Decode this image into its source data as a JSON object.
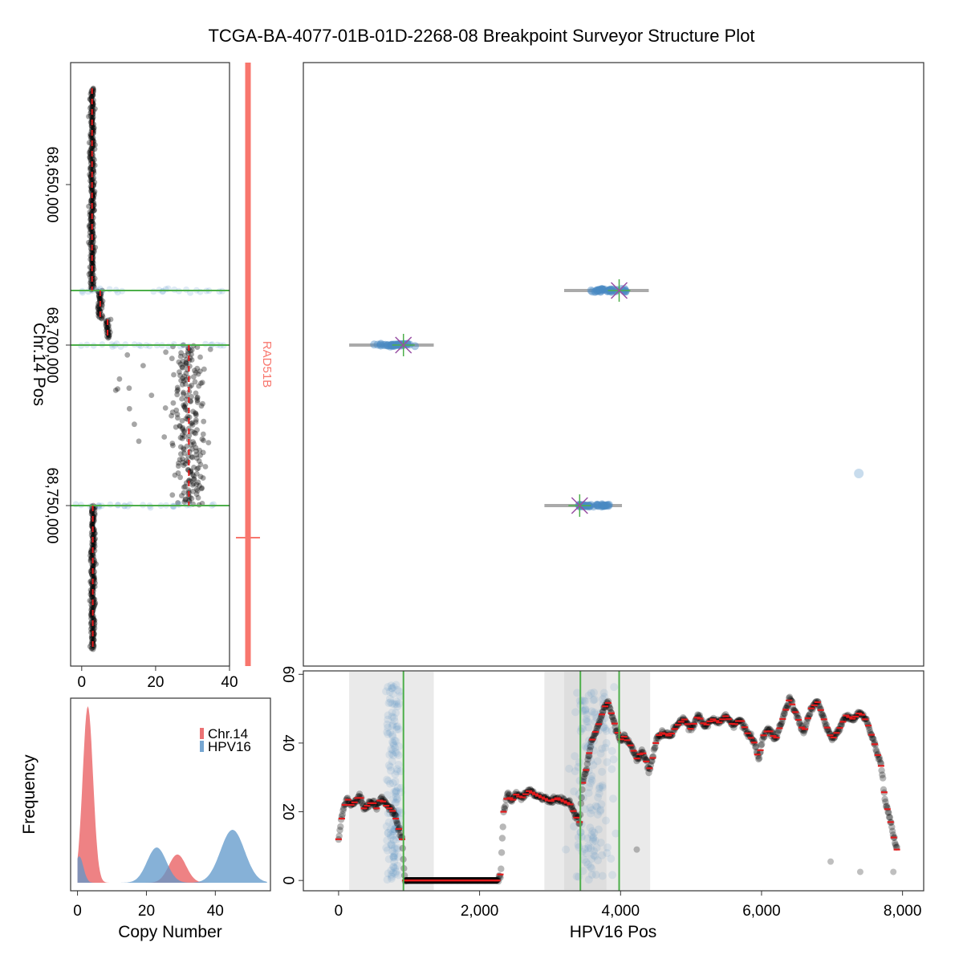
{
  "title": "TCGA-BA-4077-01B-01D-2268-08 Breakpoint Surveyor Structure Plot",
  "colors": {
    "chr_copy_points": "#000000",
    "segment_mean": "#e41a1c",
    "breakpoint_line": "#4daf4a",
    "read_points": "#4a8ac4",
    "range_bar": "#aaaaaa",
    "breakpoint_marker": "#984ea3",
    "gene": "#f8766d",
    "region_shade": "#d8d8d8",
    "chr_density": "#e8585b",
    "hpv_density": "#5e97c9"
  },
  "chart_data": [
    {
      "id": "chr-copy-number",
      "type": "scatter",
      "xlabel": "",
      "ylabel": "Chr.14 Pos",
      "xlim": [
        -3,
        40
      ],
      "ylim": [
        68612000,
        68800000
      ],
      "y_reversed": true,
      "xticks": [
        0,
        20,
        40
      ],
      "xtick_labels": [
        "0",
        "20",
        "40"
      ],
      "yticks": [
        68650000,
        68700000,
        68750000
      ],
      "ytick_labels": [
        "68,650,000",
        "68,700,000",
        "68,750,000"
      ],
      "segments": [
        {
          "y_start": 68620000,
          "y_end": 68683000,
          "copy": 2.8
        },
        {
          "y_start": 68683000,
          "y_end": 68692000,
          "copy": 5
        },
        {
          "y_start": 68692000,
          "y_end": 68698000,
          "copy": 7
        },
        {
          "y_start": 68700000,
          "y_end": 68750000,
          "copy": 29
        },
        {
          "y_start": 68750000,
          "y_end": 68795000,
          "copy": 3
        }
      ],
      "breakpoints_y": [
        68683000,
        68700000,
        68750000
      ]
    },
    {
      "id": "gene-track",
      "type": "annotation",
      "gene": "RAD51B",
      "y_start": 68612000,
      "y_end": 68800000,
      "tss_y": 68760000
    },
    {
      "id": "breakpoint-structure",
      "type": "scatter",
      "xlim": [
        -500,
        8300
      ],
      "ylim": [
        68612000,
        68800000
      ],
      "clusters": [
        {
          "x_center": 3850,
          "y": 68683000,
          "range": [
            3200,
            4400
          ],
          "breakpoint_x": 3980
        },
        {
          "x_center": 800,
          "y": 68700000,
          "range": [
            150,
            1350
          ],
          "breakpoint_x": 920
        },
        {
          "x_center": 3600,
          "y": 68750000,
          "range": [
            2920,
            4020
          ],
          "breakpoint_x": 3420
        }
      ],
      "outliers": [
        {
          "x": 7380,
          "y": 68740000
        }
      ]
    },
    {
      "id": "hpv-copy-number",
      "type": "line",
      "xlabel": "HPV16 Pos",
      "ylabel": "",
      "xlim": [
        -500,
        8300
      ],
      "ylim": [
        -3,
        61
      ],
      "xticks": [
        0,
        2000,
        4000,
        6000,
        8000
      ],
      "xtick_labels": [
        "0",
        "2,000",
        "4,000",
        "6,000",
        "8,000"
      ],
      "yticks": [
        0,
        20,
        40,
        60
      ],
      "ytick_labels": [
        "0",
        "20",
        "40",
        "60"
      ],
      "shaded_regions": [
        [
          150,
          1350
        ],
        [
          2920,
          4420
        ],
        [
          3200,
          3800
        ]
      ],
      "breakpoints_x": [
        920,
        3430,
        3980
      ],
      "profile_x": [
        0,
        60,
        120,
        180,
        240,
        300,
        360,
        420,
        480,
        540,
        600,
        660,
        720,
        780,
        840,
        900,
        940,
        1200,
        1600,
        2000,
        2260,
        2300,
        2340,
        2400,
        2460,
        2520,
        2600,
        2700,
        2800,
        2900,
        3000,
        3100,
        3200,
        3300,
        3350,
        3420,
        3460,
        3520,
        3580,
        3640,
        3700,
        3760,
        3820,
        3880,
        3940,
        4000,
        4060,
        4120,
        4180,
        4240,
        4300,
        4360,
        4400,
        4460,
        4520,
        4600,
        4700,
        4800,
        4900,
        5000,
        5100,
        5200,
        5300,
        5400,
        5500,
        5600,
        5700,
        5800,
        5900,
        5960,
        6020,
        6100,
        6200,
        6300,
        6400,
        6500,
        6600,
        6700,
        6800,
        6900,
        7000,
        7100,
        7200,
        7300,
        7400,
        7500,
        7600,
        7700,
        7760,
        7800,
        7840,
        7880,
        7920
      ],
      "profile_y": [
        12,
        20,
        24,
        22,
        23,
        25,
        21,
        22,
        23,
        21,
        24,
        22,
        21,
        20,
        16,
        12,
        0,
        0,
        0,
        0,
        0,
        2,
        20,
        25,
        23,
        25,
        24,
        26,
        25,
        24,
        23,
        24,
        23,
        22,
        19,
        17,
        28,
        33,
        40,
        43,
        46,
        50,
        52,
        48,
        44,
        41,
        42,
        40,
        38,
        35,
        38,
        35,
        32,
        36,
        42,
        43,
        42,
        45,
        47,
        44,
        48,
        45,
        47,
        46,
        48,
        45,
        47,
        43,
        40,
        35,
        42,
        44,
        41,
        47,
        53,
        48,
        43,
        50,
        52,
        46,
        41,
        44,
        48,
        47,
        49,
        46,
        40,
        33,
        22,
        20,
        16,
        12,
        9
      ],
      "read_pileups_x": [
        780,
        3600
      ],
      "outliers": [
        {
          "x": 4230,
          "y": 9
        },
        {
          "x": 6980,
          "y": 5.5
        },
        {
          "x": 7400,
          "y": 2.5
        },
        {
          "x": 7870,
          "y": 2.5
        }
      ]
    },
    {
      "id": "copy-number-density",
      "type": "area",
      "xlabel": "Copy Number",
      "ylabel": "Frequency",
      "xlim": [
        -2,
        56
      ],
      "xticks": [
        0,
        20,
        40
      ],
      "xtick_labels": [
        "0",
        "20",
        "40"
      ],
      "legend_position": "top-right",
      "series": [
        {
          "name": "Chr.14",
          "peaks": [
            {
              "mean": 3,
              "sd": 1.5,
              "height": 1.0
            },
            {
              "mean": 29,
              "sd": 2.5,
              "height": 0.16
            }
          ]
        },
        {
          "name": "HPV16",
          "peaks": [
            {
              "mean": 0.5,
              "sd": 1.2,
              "height": 0.15
            },
            {
              "mean": 23,
              "sd": 2.8,
              "height": 0.2
            },
            {
              "mean": 45,
              "sd": 3.5,
              "height": 0.3
            }
          ]
        }
      ]
    }
  ]
}
